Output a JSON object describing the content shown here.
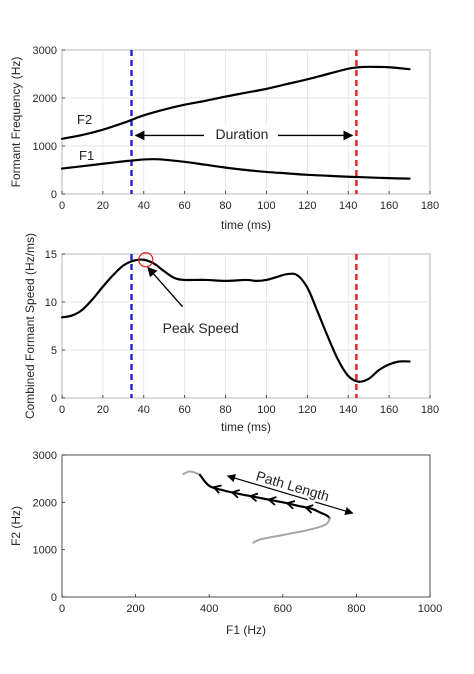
{
  "chart_data": [
    {
      "type": "line",
      "xlabel": "time (ms)",
      "ylabel": "Formant Frequency (Hz)",
      "xlim": [
        0,
        180
      ],
      "ylim": [
        0,
        3000
      ],
      "xticks": [
        "0",
        "20",
        "40",
        "60",
        "80",
        "100",
        "120",
        "140",
        "160",
        "180"
      ],
      "yticks": [
        "0",
        "1000",
        "2000",
        "3000"
      ],
      "grid": true,
      "series": [
        {
          "name": "F2",
          "color": "#000000",
          "x": [
            0,
            10,
            20,
            30,
            35,
            40,
            50,
            60,
            70,
            80,
            90,
            100,
            110,
            120,
            130,
            140,
            145,
            150,
            160,
            170
          ],
          "y": [
            1150,
            1230,
            1340,
            1480,
            1560,
            1640,
            1760,
            1860,
            1940,
            2030,
            2110,
            2190,
            2290,
            2390,
            2500,
            2610,
            2640,
            2650,
            2640,
            2600
          ]
        },
        {
          "name": "F1",
          "color": "#000000",
          "x": [
            0,
            10,
            20,
            30,
            35,
            40,
            45,
            50,
            60,
            70,
            80,
            90,
            100,
            110,
            120,
            130,
            140,
            150,
            160,
            170
          ],
          "y": [
            530,
            580,
            630,
            680,
            700,
            720,
            725,
            715,
            670,
            610,
            550,
            500,
            460,
            430,
            400,
            380,
            360,
            345,
            330,
            320
          ]
        }
      ],
      "markers": [
        {
          "x": 34,
          "color": "#1f1fd6"
        },
        {
          "x": 144,
          "color": "#e02020"
        }
      ],
      "annotations": [
        {
          "text": "Duration",
          "x_from": 36,
          "x_to": 142,
          "y": 1220
        }
      ]
    },
    {
      "type": "line",
      "xlabel": "time (ms)",
      "ylabel": "Combined Formant Speed (Hz/ms)",
      "xlim": [
        0,
        180
      ],
      "ylim": [
        0,
        15
      ],
      "xticks": [
        "0",
        "20",
        "40",
        "60",
        "80",
        "100",
        "120",
        "140",
        "160",
        "180"
      ],
      "yticks": [
        "0",
        "5",
        "10",
        "15"
      ],
      "grid": true,
      "series": [
        {
          "name": "",
          "color": "#000000",
          "x": [
            0,
            5,
            10,
            15,
            20,
            25,
            30,
            35,
            40,
            45,
            50,
            55,
            60,
            70,
            80,
            90,
            95,
            100,
            105,
            110,
            115,
            120,
            125,
            130,
            135,
            140,
            145,
            150,
            155,
            160,
            165,
            170
          ],
          "y": [
            8.4,
            8.6,
            9.2,
            10.3,
            11.6,
            12.8,
            13.8,
            14.3,
            14.4,
            14.0,
            13.2,
            12.5,
            12.3,
            12.3,
            12.2,
            12.3,
            12.2,
            12.3,
            12.6,
            12.9,
            12.8,
            11.5,
            9.0,
            6.4,
            4.0,
            2.3,
            1.7,
            2.0,
            2.9,
            3.5,
            3.8,
            3.8
          ]
        }
      ],
      "markers": [
        {
          "x": 34,
          "color": "#1f1fd6"
        },
        {
          "x": 144,
          "color": "#e02020"
        }
      ],
      "peak": {
        "x": 41,
        "y": 14.4
      },
      "annotations": [
        {
          "text": "Peak Speed",
          "arrow_from": [
            59,
            9.5
          ],
          "arrow_to": [
            42,
            13.6
          ],
          "text_x": 61,
          "text_y": 7.3
        }
      ]
    },
    {
      "type": "line",
      "xlabel": "F1 (Hz)",
      "ylabel": "F2 (Hz)",
      "xlim": [
        0,
        1000
      ],
      "ylim": [
        0,
        3000
      ],
      "xticks": [
        "0",
        "200",
        "400",
        "600",
        "800",
        "1000"
      ],
      "yticks": [
        "0",
        "1000",
        "2000",
        "3000"
      ],
      "grid": false,
      "series": [
        {
          "name": "",
          "color": "#a6a6a6",
          "x": [
            330,
            345,
            360,
            375
          ],
          "y": [
            2600,
            2650,
            2630,
            2580
          ]
        },
        {
          "name": "",
          "color": "#000000",
          "x": [
            375,
            400,
            440,
            480,
            520,
            560,
            600,
            640,
            680,
            700,
            720,
            728
          ],
          "y": [
            2580,
            2350,
            2250,
            2180,
            2120,
            2060,
            2000,
            1930,
            1860,
            1790,
            1720,
            1660
          ]
        },
        {
          "name": "",
          "color": "#a6a6a6",
          "x": [
            728,
            720,
            700,
            660,
            620,
            580,
            540,
            520
          ],
          "y": [
            1660,
            1550,
            1480,
            1400,
            1340,
            1280,
            1220,
            1150
          ]
        }
      ],
      "arrows_x": [
        420,
        470,
        520,
        570,
        620,
        670
      ],
      "annotations": [
        {
          "text": "Path Length",
          "x_from": 450,
          "x_to": 790,
          "y_from": 2980,
          "y_to": 1940
        }
      ]
    }
  ]
}
